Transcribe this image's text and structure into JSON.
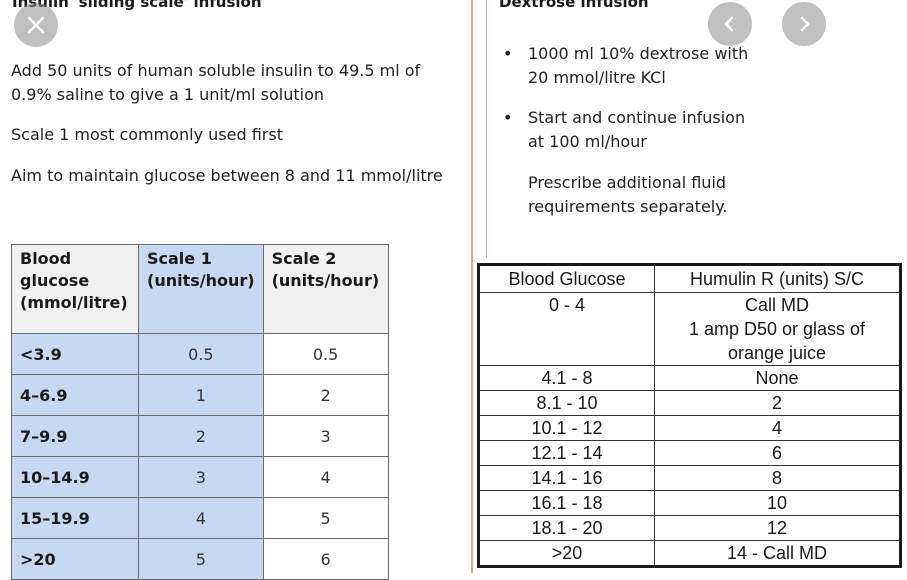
{
  "left": {
    "title": "Insulin 'sliding scale' infusion",
    "para1_line1": "Add 50 units of human soluble insulin to 49.5 ml of",
    "para1_line2": "0.9% saline to give a 1 unit/ml solution",
    "para2": "Scale 1 most commonly used first",
    "para3": "Aim to maintain glucose between 8 and 11 mmol/litre",
    "table": {
      "headers": [
        [
          "Blood",
          "glucose",
          "(mmol/litre)"
        ],
        [
          "Scale 1",
          "(units/hour)"
        ],
        [
          "Scale 2",
          "(units/hour)"
        ]
      ],
      "rows": [
        [
          "<3.9",
          "0.5",
          "0.5"
        ],
        [
          "4–6.9",
          "1",
          "2"
        ],
        [
          "7–9.9",
          "2",
          "3"
        ],
        [
          "10–14.9",
          "3",
          "4"
        ],
        [
          "15–19.9",
          "4",
          "5"
        ],
        [
          ">20",
          "5",
          "6"
        ]
      ]
    }
  },
  "right": {
    "title": "Dextrose infusion",
    "bullet1_line1": "1000 ml 10% dextrose with",
    "bullet1_line2": "20 mmol/litre KCl",
    "bullet2_line1": "Start and continue infusion",
    "bullet2_line2": "at 100 ml/hour",
    "note_line1": "Prescribe additional fluid",
    "note_line2": "requirements separately.",
    "bullet_glyph": "•",
    "table": {
      "headers": [
        "Blood Glucose",
        "Humulin R (units) S/C"
      ],
      "first_row": {
        "glucose": "0 - 4",
        "lines": [
          "Call MD",
          "1 amp D50 or glass of",
          "orange juice"
        ]
      },
      "rows": [
        [
          "4.1 - 8",
          "None"
        ],
        [
          "8.1 - 10",
          "2"
        ],
        [
          "10.1 - 12",
          "4"
        ],
        [
          "12.1 - 14",
          "6"
        ],
        [
          "14.1 - 16",
          "8"
        ],
        [
          "16.1 - 18",
          "10"
        ],
        [
          "18.1 - 20",
          "12"
        ],
        [
          ">20",
          "14 - Call MD"
        ]
      ]
    }
  },
  "controls": {
    "close_icon": "close-icon",
    "prev_icon": "chevron-left-icon",
    "next_icon": "chevron-right-icon"
  },
  "colors": {
    "scale1_column_bg": "#c7d9f1",
    "header_bg": "#f1f1f1",
    "divider": "#d7a7a7"
  }
}
